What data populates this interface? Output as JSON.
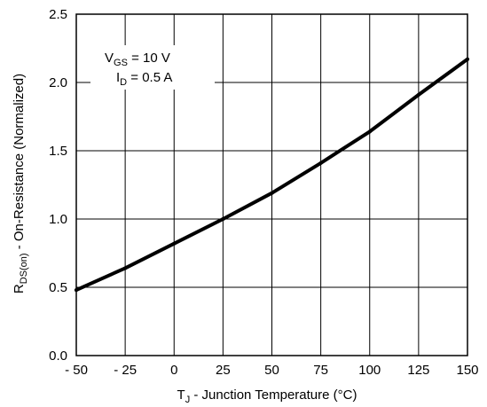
{
  "chart_data": {
    "type": "line",
    "title": "",
    "xlabel": {
      "prefix": "T",
      "sub": "J",
      "suffix": " - Junction Temperature (°C)"
    },
    "ylabel": {
      "prefix": "R",
      "sub": "DS(on)",
      "suffix": " - On-Resistance  (Normalized)"
    },
    "xlim": [
      -50,
      150
    ],
    "ylim": [
      0,
      2.5
    ],
    "x_ticks": [
      -50,
      -25,
      0,
      25,
      50,
      75,
      100,
      125,
      150
    ],
    "x_tick_labels": [
      "- 50",
      "- 25",
      "0",
      "25",
      "50",
      "75",
      "100",
      "125",
      "150"
    ],
    "y_ticks": [
      0,
      0.5,
      1.0,
      1.5,
      2.0,
      2.5
    ],
    "y_tick_labels": [
      "0.0",
      "0.5",
      "1.0",
      "1.5",
      "2.0",
      "2.5"
    ],
    "grid": true,
    "legend": "none",
    "line_color": "#000000",
    "annotations": [
      {
        "prefix": "V",
        "sub": "GS",
        "suffix": " = 10 V"
      },
      {
        "prefix": "I",
        "sub": "D",
        "suffix": " =  0.5 A"
      }
    ],
    "series": [
      {
        "x": [
          -50,
          -25,
          0,
          25,
          50,
          75,
          100,
          125,
          150
        ],
        "y": [
          0.48,
          0.64,
          0.82,
          1.0,
          1.19,
          1.41,
          1.64,
          1.91,
          2.17
        ]
      }
    ]
  }
}
